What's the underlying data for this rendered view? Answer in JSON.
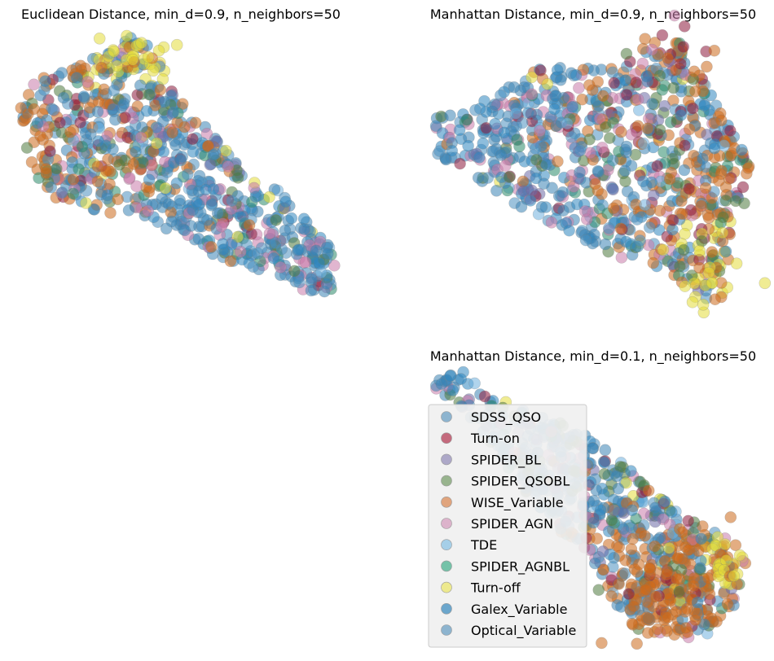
{
  "figure": {
    "background": "#ffffff"
  },
  "chart_data": [
    {
      "type": "scatter",
      "title": "Euclidean Distance, min_d=0.9, n_neighbors=50",
      "grid": false,
      "axes_visible": false,
      "point_alpha": 0.5,
      "shape": "diagonal band from upper-left dense cluster to lower-right tail",
      "series_density": {
        "SDSS_QSO": "high, spread throughout",
        "Turn-on": "scattered in upper-left",
        "SPIDER_BL": "sparse",
        "SPIDER_QSOBL": "mid region",
        "WISE_Variable": "dense upper-left cluster",
        "SPIDER_AGN": "spread throughout",
        "TDE": "sparse, lower-right",
        "SPIDER_AGNBL": "scattered",
        "Turn-off": "top of upper-left cluster",
        "Galex_Variable": "spread, denser in lower-right tail",
        "Optical_Variable": "spread, denser in lower-right tail"
      }
    },
    {
      "type": "scatter",
      "title": "Manhattan Distance, min_d=0.9, n_neighbors=50",
      "grid": false,
      "axes_visible": false,
      "point_alpha": 0.5,
      "shape": "wide blob, left side blue/pink, right side orange, yellow at lower-right",
      "series_density": {
        "SDSS_QSO": "high, left and center",
        "Turn-on": "scattered upper-right",
        "SPIDER_BL": "sparse",
        "SPIDER_QSOBL": "scattered",
        "WISE_Variable": "dense right side",
        "SPIDER_AGN": "left and center",
        "TDE": "sparse left",
        "SPIDER_AGNBL": "scattered",
        "Turn-off": "lower-right corner",
        "Galex_Variable": "left and center",
        "Optical_Variable": "left and center"
      }
    },
    {
      "type": "scatter",
      "title": "Manhattan Distance, min_d=0.1, n_neighbors=50",
      "grid": false,
      "axes_visible": false,
      "point_alpha": 0.5,
      "shape": "diagonal band from upper-left thin tail to lower-right dense cluster",
      "series_density": {
        "SDSS_QSO": "upper-left tail and spread",
        "Turn-on": "scattered center",
        "SPIDER_BL": "sparse",
        "SPIDER_QSOBL": "center",
        "WISE_Variable": "dense lower-right cluster",
        "SPIDER_AGN": "center",
        "TDE": "sparse",
        "SPIDER_AGNBL": "scattered",
        "Turn-off": "right edge of lower cluster",
        "Galex_Variable": "upper-left tail",
        "Optical_Variable": "spread"
      }
    }
  ],
  "legend": {
    "placement": "lower-left of bottom-right panel",
    "background": "#f0f0f0",
    "border": "#cccccc",
    "entries": [
      {
        "label": "SDSS_QSO",
        "color": "#8db4cf"
      },
      {
        "label": "Turn-on",
        "color": "#c46a7d"
      },
      {
        "label": "SPIDER_BL",
        "color": "#ada8c8"
      },
      {
        "label": "SPIDER_QSOBL",
        "color": "#98b48e"
      },
      {
        "label": "WISE_Variable",
        "color": "#e0a47d"
      },
      {
        "label": "SPIDER_AGN",
        "color": "#dcb3cb"
      },
      {
        "label": "TDE",
        "color": "#a6cfe8"
      },
      {
        "label": "SPIDER_AGNBL",
        "color": "#74c2a8"
      },
      {
        "label": "Turn-off",
        "color": "#ede98e"
      },
      {
        "label": "Galex_Variable",
        "color": "#6ba6cc"
      },
      {
        "label": "Optical_Variable",
        "color": "#8db4cf"
      }
    ]
  },
  "render_colors": {
    "SDSS_QSO": "#3a83b5",
    "Turn-on": "#8c1a3c",
    "SPIDER_BL": "#6b6aa6",
    "SPIDER_QSOBL": "#4f7a3e",
    "WISE_Variable": "#cc6a1c",
    "SPIDER_AGN": "#c97aa9",
    "TDE": "#6fb0de",
    "SPIDER_AGNBL": "#2a8a6a",
    "Turn-off": "#e3dc3a",
    "Galex_Variable": "#2f86bf",
    "Optical_Variable": "#4a90bf"
  }
}
